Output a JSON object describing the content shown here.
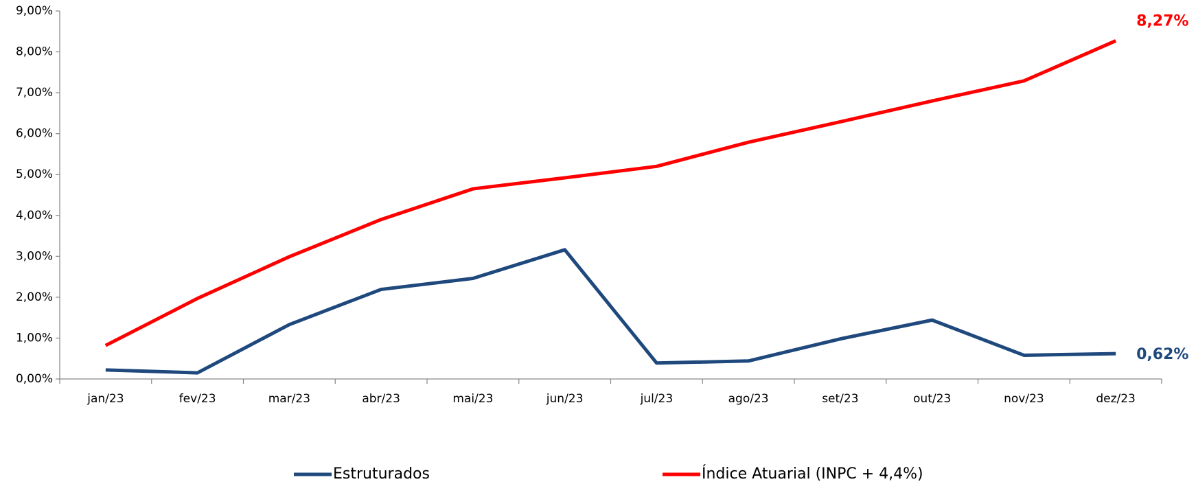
{
  "chart_data": {
    "type": "line",
    "categories": [
      "jan/23",
      "fev/23",
      "mar/23",
      "abr/23",
      "mai/23",
      "jun/23",
      "jul/23",
      "ago/23",
      "set/23",
      "out/23",
      "nov/23",
      "dez/23"
    ],
    "series": [
      {
        "name": "Estruturados",
        "color": "#1f497d",
        "values": [
          0.22,
          0.15,
          1.33,
          2.19,
          2.46,
          3.16,
          0.39,
          0.44,
          0.98,
          1.44,
          0.58,
          0.62
        ],
        "value_labels": [
          null,
          null,
          null,
          null,
          null,
          null,
          null,
          null,
          null,
          null,
          null,
          "0,62%"
        ]
      },
      {
        "name": "Índice Atuarial (INPC + 4,4%)",
        "color": "#ff0000",
        "values": [
          0.82,
          1.97,
          2.99,
          3.9,
          4.65,
          4.92,
          5.2,
          5.79,
          6.29,
          6.8,
          7.29,
          8.27
        ],
        "value_labels": [
          null,
          null,
          null,
          null,
          null,
          null,
          null,
          null,
          null,
          null,
          null,
          "8,27%"
        ]
      }
    ],
    "ylim": [
      0,
      9
    ],
    "yticks": [
      {
        "value": 0,
        "label": "0,00%"
      },
      {
        "value": 1,
        "label": "1,00%"
      },
      {
        "value": 2,
        "label": "2,00%"
      },
      {
        "value": 3,
        "label": "3,00%"
      },
      {
        "value": 4,
        "label": "4,00%"
      },
      {
        "value": 5,
        "label": "5,00%"
      },
      {
        "value": 6,
        "label": "6,00%"
      },
      {
        "value": 7,
        "label": "7,00%"
      },
      {
        "value": 8,
        "label": "8,00%"
      },
      {
        "value": 9,
        "label": "9,00%"
      }
    ],
    "legend": "bottom"
  }
}
